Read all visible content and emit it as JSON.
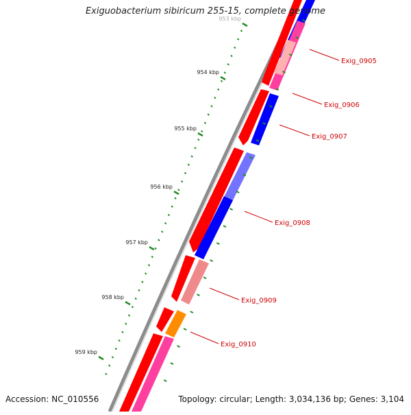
{
  "title": "Exiguobacterium sibiricum 255-15, complete genome",
  "footer": {
    "accession": "Accession: NC_010556",
    "summary": "Topology: circular; Length: 3,034,136 bp; Genes: 3,104"
  },
  "colors": {
    "backbone": "#8c8c8c",
    "gene_red": "#ff0000",
    "gene_blue": "#0000ff",
    "gene_pink": "#ff3fa0",
    "gene_salmon": "#f08a8a",
    "gene_orange": "#ff8c00",
    "tick": "#228b22",
    "label": "#cc0000"
  },
  "scale_ticks": [
    {
      "label": "953 kbp"
    },
    {
      "label": "954 kbp"
    },
    {
      "label": "955 kbp"
    },
    {
      "label": "956 kbp"
    },
    {
      "label": "957 kbp"
    },
    {
      "label": "958 kbp"
    },
    {
      "label": "959 kbp"
    }
  ],
  "gene_labels": [
    {
      "label": "Exig_0905"
    },
    {
      "label": "Exig_0906"
    },
    {
      "label": "Exig_0907"
    },
    {
      "label": "Exig_0908"
    },
    {
      "label": "Exig_0909"
    },
    {
      "label": "Exig_0910"
    }
  ]
}
